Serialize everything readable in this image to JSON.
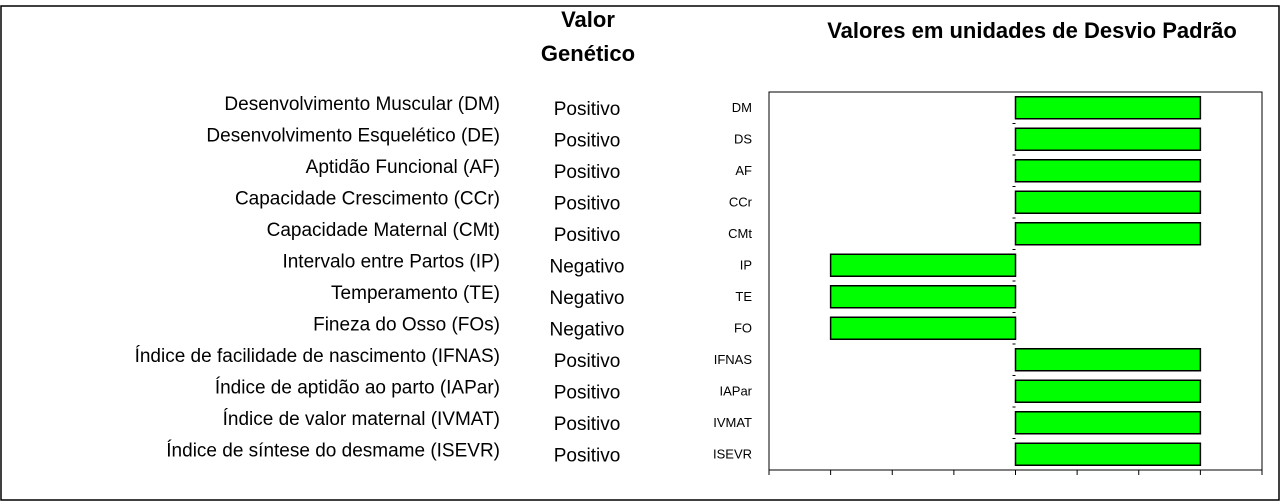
{
  "chart_data": {
    "type": "bar",
    "orientation": "horizontal",
    "title": "Valores em unidades de Desvio Padrão",
    "column_header": [
      "Valor",
      "Genético"
    ],
    "traits": [
      "Desenvolvimento Muscular (DM)",
      "Desenvolvimento Esquelético (DE)",
      "Aptidão Funcional (AF)",
      "Capacidade Crescimento (CCr)",
      "Capacidade Maternal (CMt)",
      "Intervalo entre Partos (IP)",
      "Temperamento (TE)",
      "Fineza do Osso (FOs)",
      "Índice de facilidade de nascimento (IFNAS)",
      "Índice de aptidão ao parto (IAPar)",
      "Índice de valor maternal (IVMAT)",
      "Índice de síntese do desmame (ISEVR)"
    ],
    "directions": [
      "Positivo",
      "Positivo",
      "Positivo",
      "Positivo",
      "Positivo",
      "Negativo",
      "Negativo",
      "Negativo",
      "Positivo",
      "Positivo",
      "Positivo",
      "Positivo"
    ],
    "categories": [
      "DM",
      "DS",
      "AF",
      "CCr",
      "CMt",
      "IP",
      "TE",
      "FO",
      "IFNAS",
      "IAPar",
      "IVMAT",
      "ISEVR"
    ],
    "values": [
      3,
      3,
      3,
      3,
      3,
      -3,
      -3,
      -3,
      3,
      3,
      3,
      3
    ],
    "color": "#00ff00",
    "xlim": [
      -4,
      4
    ],
    "xticks": [
      -4,
      -3,
      -2,
      -1,
      0,
      1,
      2,
      3,
      4
    ]
  }
}
